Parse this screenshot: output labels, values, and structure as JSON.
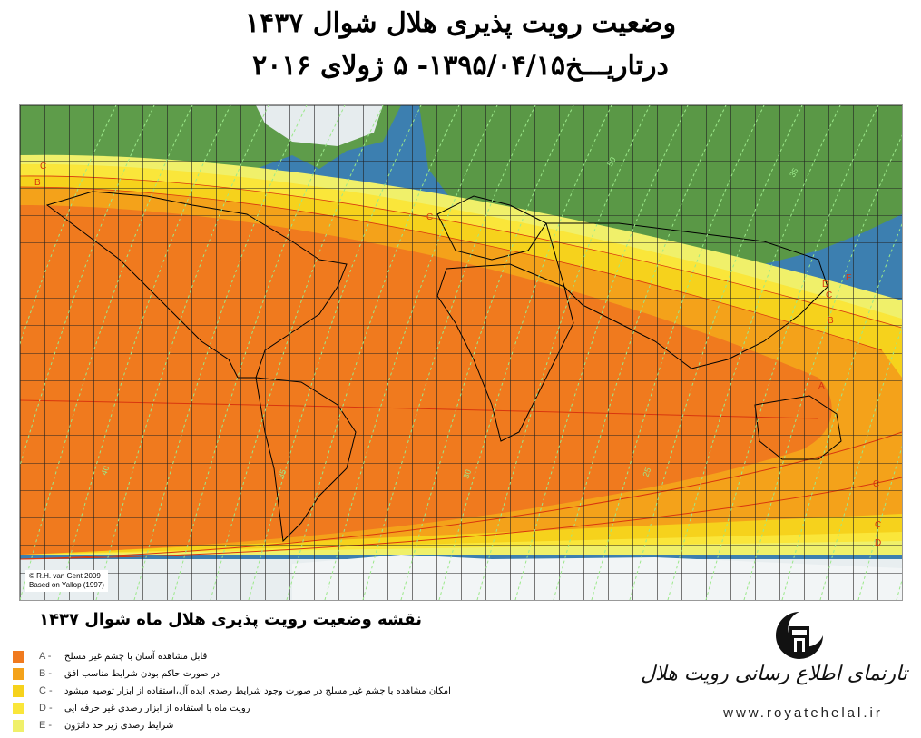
{
  "header": {
    "title_line1": "وضعیت رویت پذیری هلال شوال ۱۴۳۷",
    "title_line2": "درتاریـــخ۱۳۹۵/۰۴/۱۵-   ۵  ژولای   ۲۰۱۶"
  },
  "map": {
    "credit_line1": "© R.H. van Gent 2009",
    "credit_line2": "Based on Yallop (1997)",
    "zone_labels": [
      "A",
      "B",
      "C",
      "D",
      "E"
    ],
    "contour_labels": [
      "40",
      "35",
      "30",
      "25",
      "50",
      "35"
    ],
    "colors": {
      "ocean": "#3c7fb0",
      "land": "#5e9c4a",
      "zone_A": "#f07a1e",
      "zone_B": "#f4a21a",
      "zone_C": "#f6d21c",
      "zone_D": "#fae63a",
      "zone_E": "#f0f06a",
      "grid": "#222222",
      "contour": "#9be88a"
    }
  },
  "caption": "نقشه وضعیت رویت پذیری هلال ماه شوال ۱۴۳۷",
  "legend": [
    {
      "key": "A -",
      "text": "قابل مشاهده آسان با چشم غیر مسلح",
      "color": "#f07a1e"
    },
    {
      "key": "B -",
      "text": "در صورت حاکم بودن شرایط مناسب افق",
      "color": "#f4a21a"
    },
    {
      "key": "C -",
      "text": "امکان مشاهده با چشم غیر مسلح در صورت وجود شرایط رصدی ایده آل،استفاده از ابزار توصیه میشود",
      "color": "#f6d21c"
    },
    {
      "key": "D -",
      "text": "رویت ماه با استفاده از ابزار رصدی غیر حرفه ایی",
      "color": "#fae63a"
    },
    {
      "key": "E -",
      "text": "شرایط رصدی زیر حد دانژون",
      "color": "#f0f06a"
    }
  ],
  "brand": {
    "name": "تارنمای اطلاع رسانی رویت هلال",
    "url": "www.royatehelal.ir",
    "icon": "crescent-logo-icon"
  }
}
